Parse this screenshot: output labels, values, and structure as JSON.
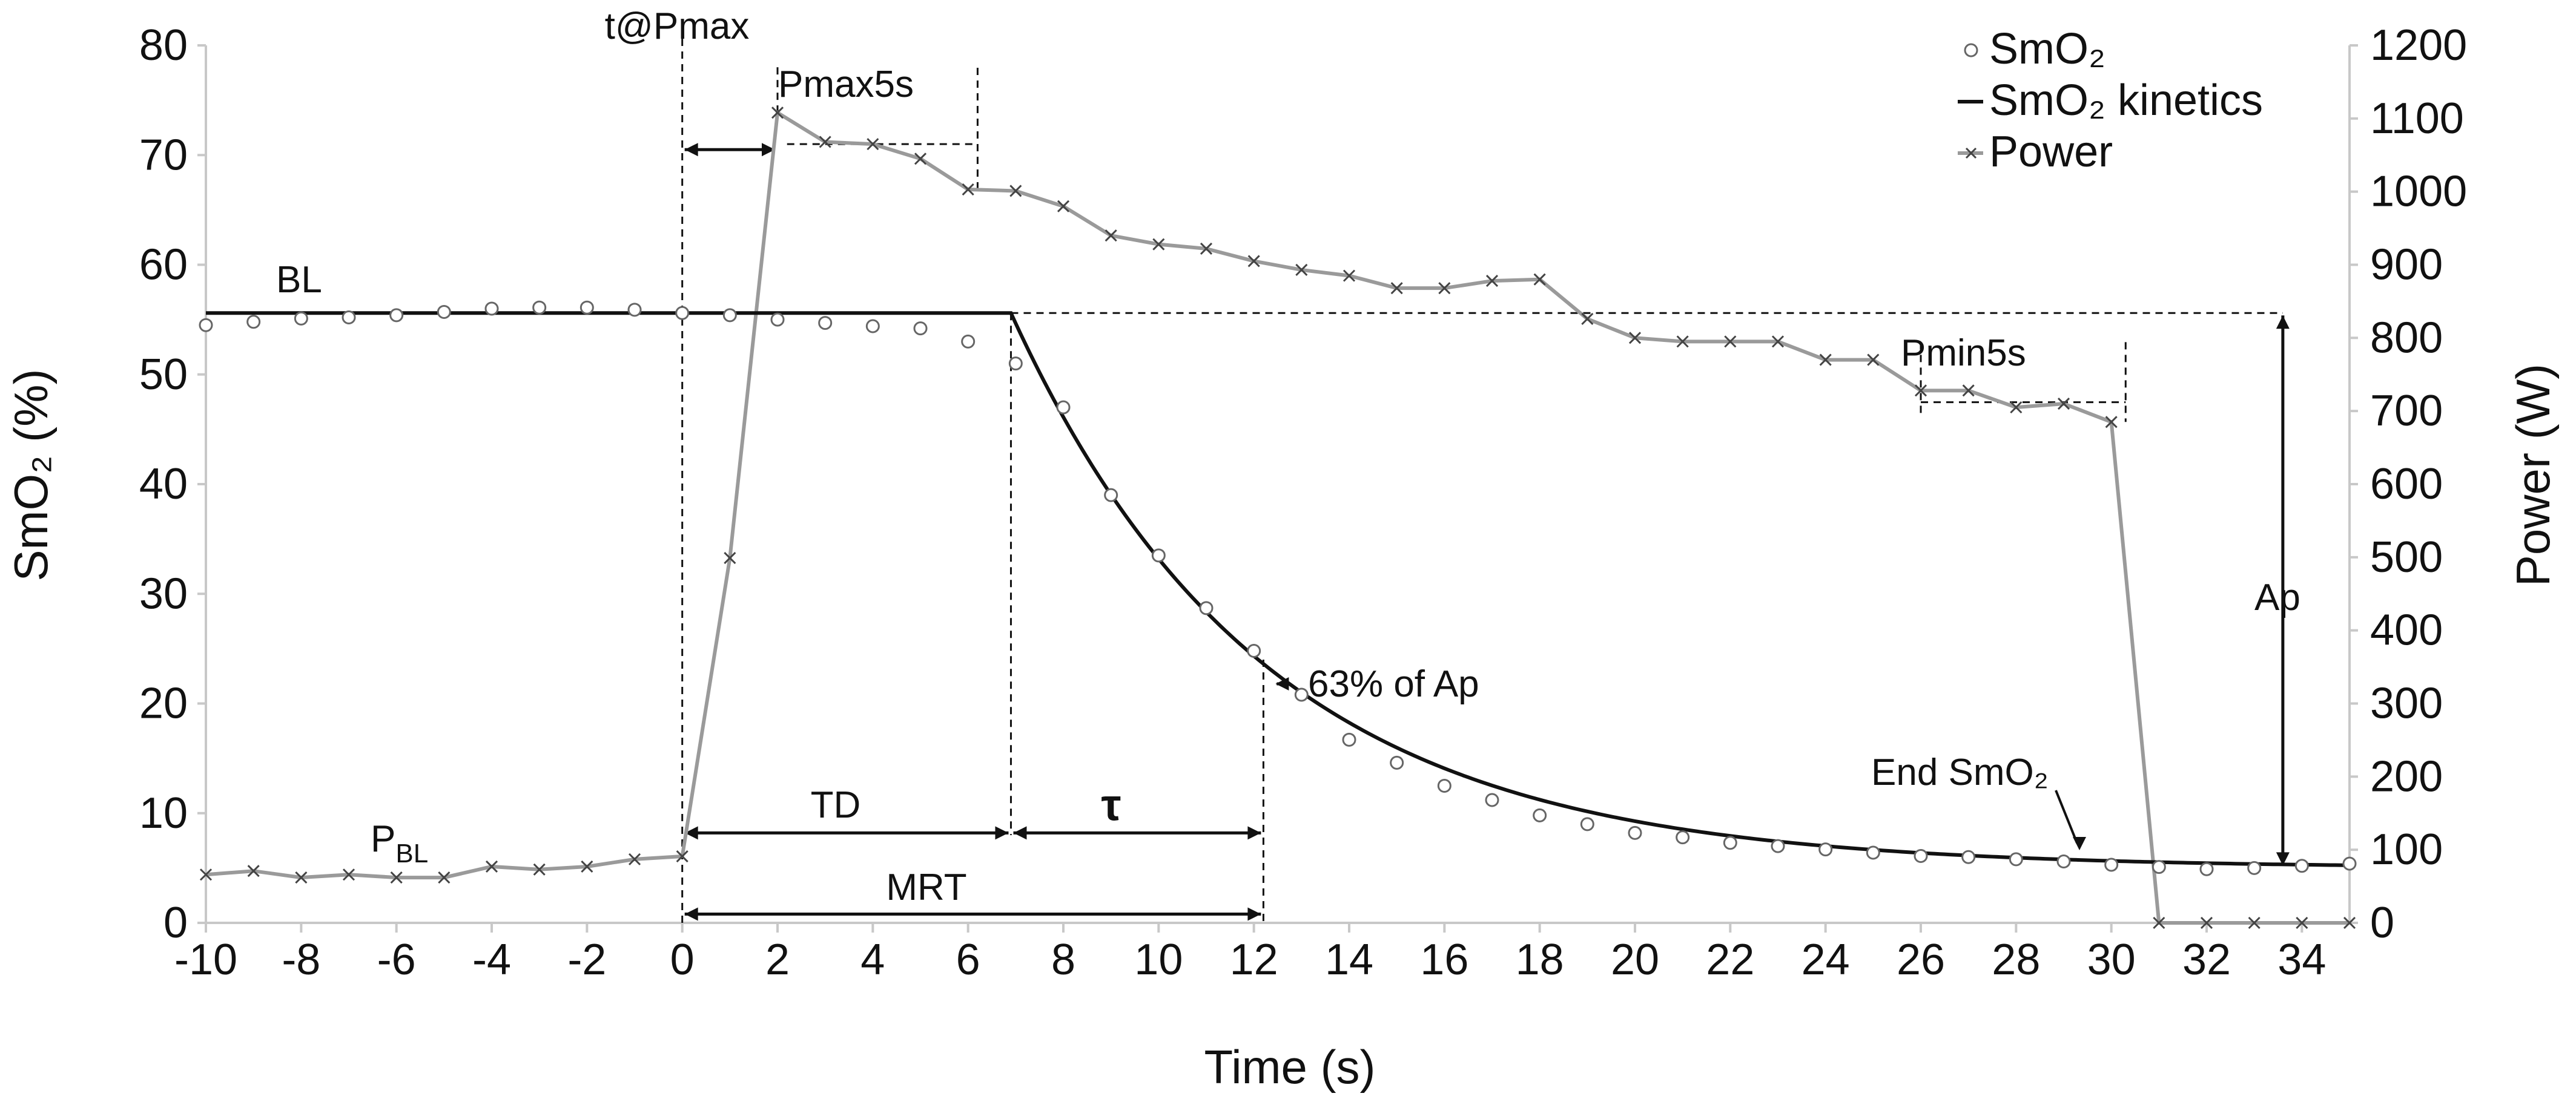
{
  "chart_data": {
    "type": "line",
    "xlabel": "Time (s)",
    "ylabel_left": "SmO₂ (%)",
    "ylabel_right": "Power (W)",
    "xlim": [
      -10,
      35
    ],
    "ylim_left": [
      0,
      80
    ],
    "ylim_right": [
      0,
      1200
    ],
    "x_ticks": [
      -10,
      -8,
      -6,
      -4,
      -2,
      0,
      2,
      4,
      6,
      8,
      10,
      12,
      14,
      16,
      18,
      20,
      22,
      24,
      26,
      28,
      30,
      32,
      34
    ],
    "y_left_ticks": [
      0,
      10,
      20,
      30,
      40,
      50,
      60,
      70,
      80
    ],
    "y_right_ticks": [
      0,
      100,
      200,
      300,
      400,
      500,
      600,
      700,
      800,
      900,
      1000,
      1100,
      1200
    ],
    "legend": {
      "position": "top-right",
      "entries": [
        {
          "label": "SmO₂",
          "marker": "circle"
        },
        {
          "label": "SmO₂ kinetics",
          "marker": "line"
        },
        {
          "label": "Power",
          "marker": "cross-line"
        }
      ]
    },
    "series": [
      {
        "name": "SmO₂",
        "axis": "left",
        "style": "open-circle",
        "x": [
          -10,
          -9,
          -8,
          -7,
          -6,
          -5,
          -4,
          -3,
          -2,
          -1,
          0,
          1,
          2,
          3,
          4,
          5,
          6,
          7,
          8,
          9,
          10,
          11,
          12,
          13,
          14,
          15,
          16,
          17,
          18,
          19,
          20,
          21,
          22,
          23,
          24,
          25,
          26,
          27,
          28,
          29,
          30,
          31,
          32,
          33,
          34,
          35
        ],
        "y": [
          54.5,
          54.8,
          55.1,
          55.2,
          55.4,
          55.7,
          56,
          56.1,
          56.1,
          55.9,
          55.6,
          55.4,
          55,
          54.7,
          54.4,
          54.2,
          53,
          51,
          47,
          39,
          33.5,
          28.7,
          24.8,
          20.8,
          16.7,
          14.6,
          12.5,
          11.2,
          9.8,
          9,
          8.2,
          7.8,
          7.3,
          7,
          6.7,
          6.4,
          6.1,
          6,
          5.8,
          5.6,
          5.3,
          5.1,
          4.9,
          5,
          5.2,
          5.4
        ]
      },
      {
        "name": "SmO₂ kinetics",
        "axis": "left",
        "style": "solid",
        "baseline": 55.6,
        "amplitude_end": 5.0,
        "td": 6.9,
        "tau": 5.3,
        "x_start": -10,
        "x_end": 35
      },
      {
        "name": "Power",
        "axis": "right",
        "style": "cross-line",
        "x": [
          -10,
          -9,
          -8,
          -7,
          -6,
          -5,
          -4,
          -3,
          -2,
          -1,
          0,
          1,
          2,
          3,
          4,
          5,
          6,
          7,
          8,
          9,
          10,
          11,
          12,
          13,
          14,
          15,
          16,
          17,
          18,
          19,
          20,
          21,
          22,
          23,
          24,
          25,
          26,
          27,
          28,
          29,
          30,
          31,
          32,
          33,
          34,
          35
        ],
        "y": [
          66,
          71,
          62,
          66,
          62,
          62,
          77,
          73,
          77,
          87,
          91,
          499,
          1108,
          1068,
          1065,
          1045,
          1003,
          1001,
          980,
          940,
          928,
          922,
          905,
          893,
          885,
          868,
          868,
          878,
          880,
          826,
          800,
          795,
          795,
          795,
          770,
          770,
          728,
          728,
          705,
          710,
          685,
          0,
          0,
          0,
          0,
          0
        ]
      }
    ],
    "annotations": {
      "t_at_pmax": "t@Pmax",
      "pmax5s": "Pmax5s",
      "bl": "BL",
      "pmin5s": "Pmin5s",
      "ap": "Ap",
      "p63": "63% of Ap",
      "td": "TD",
      "tau": "τ",
      "mrt": "MRT",
      "end_smo2": "End SmO₂",
      "pbl_main": "P",
      "pbl_sub": "BL"
    }
  }
}
